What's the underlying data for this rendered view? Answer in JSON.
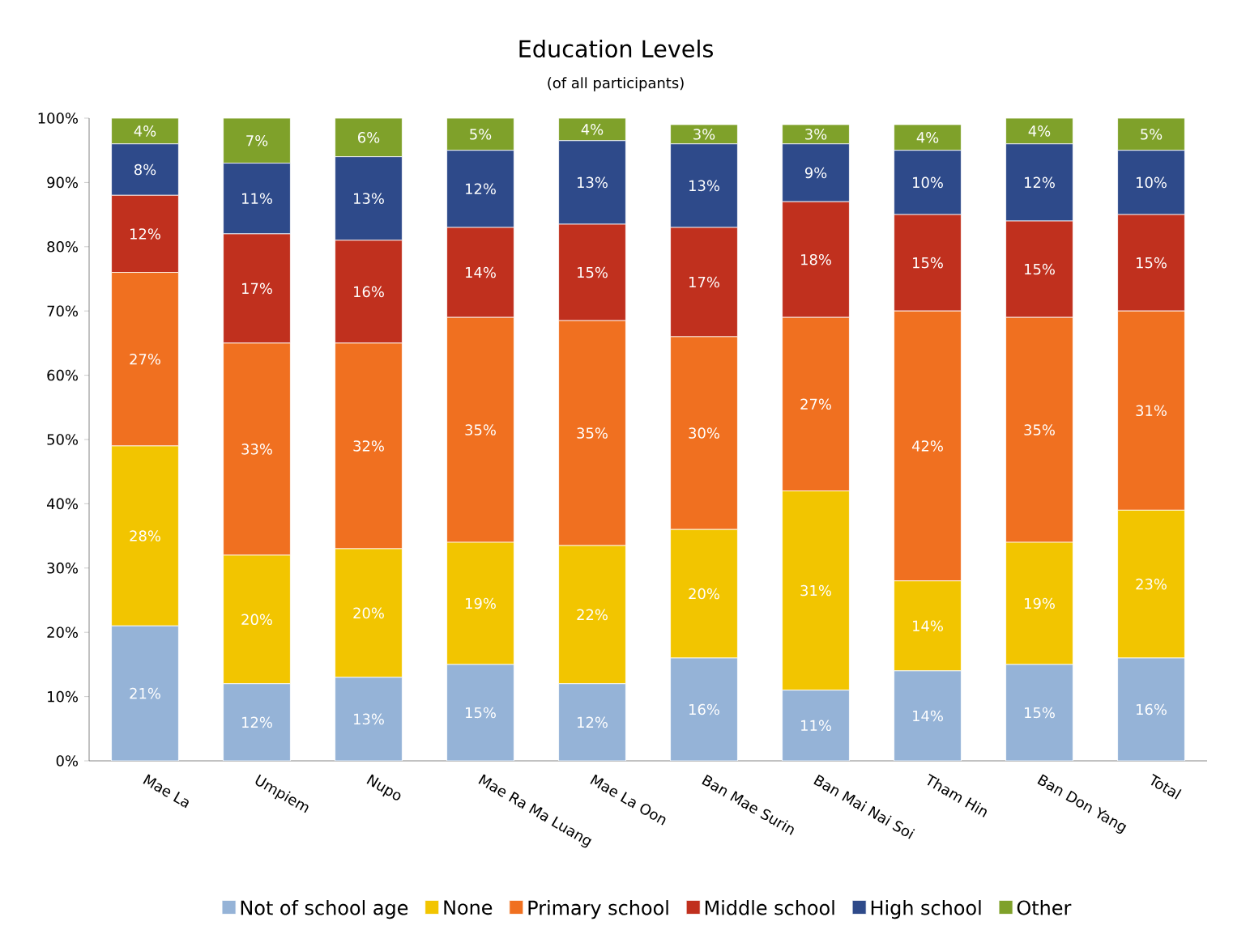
{
  "chart_data": {
    "type": "bar",
    "stacked": true,
    "title": "Education Levels",
    "subtitle": "(of all participants)",
    "categories": [
      "Mae La",
      "Umpiem",
      "Nupo",
      "Mae Ra Ma Luang",
      "Mae La Oon",
      "Ban Mae Surin",
      "Ban Mai Nai Soi",
      "Tham Hin",
      "Ban Don Yang",
      "Total"
    ],
    "ylim": [
      0,
      100
    ],
    "yticks": [
      {
        "value": 0,
        "label": "0%"
      },
      {
        "value": 10,
        "label": "10%"
      },
      {
        "value": 20,
        "label": "20%"
      },
      {
        "value": 30,
        "label": "30%"
      },
      {
        "value": 40,
        "label": "40%"
      },
      {
        "value": 50,
        "label": "50%"
      },
      {
        "value": 60,
        "label": "60%"
      },
      {
        "value": 70,
        "label": "70%"
      },
      {
        "value": 80,
        "label": "80%"
      },
      {
        "value": 90,
        "label": "90%"
      },
      {
        "value": 100,
        "label": "100%"
      }
    ],
    "grid": false,
    "legend": "bottom",
    "series": [
      {
        "name": "Not of school age",
        "color": "#95b3d7",
        "values": [
          21,
          12,
          13,
          15,
          12,
          16,
          11,
          14,
          15,
          16
        ],
        "value_labels": [
          "21%",
          "12%",
          "13%",
          "15%",
          "12%",
          "16%",
          "11%",
          "14%",
          "15%",
          "16%"
        ]
      },
      {
        "name": "None",
        "color": "#f2c500",
        "values": [
          28,
          20,
          20,
          19,
          21.5,
          20,
          31,
          14,
          19,
          23
        ],
        "value_labels": [
          "28%",
          "20%",
          "20%",
          "19%",
          "22%",
          "20%",
          "31%",
          "14%",
          "19%",
          "23%"
        ]
      },
      {
        "name": "Primary school",
        "color": "#f07020",
        "values": [
          27,
          33,
          32,
          35,
          35,
          30,
          27,
          42,
          35,
          31
        ],
        "value_labels": [
          "27%",
          "33%",
          "32%",
          "35%",
          "35%",
          "30%",
          "27%",
          "42%",
          "35%",
          "31%"
        ]
      },
      {
        "name": "Middle school",
        "color": "#c0301e",
        "values": [
          12,
          17,
          16,
          14,
          15,
          17,
          18,
          15,
          15,
          15
        ],
        "value_labels": [
          "12%",
          "17%",
          "16%",
          "14%",
          "15%",
          "17%",
          "18%",
          "15%",
          "15%",
          "15%"
        ]
      },
      {
        "name": "High school",
        "color": "#2e4a8a",
        "values": [
          8,
          11,
          13,
          12,
          13,
          13,
          9,
          10,
          12,
          10
        ],
        "value_labels": [
          "8%",
          "11%",
          "13%",
          "12%",
          "13%",
          "13%",
          "9%",
          "10%",
          "12%",
          "10%"
        ]
      },
      {
        "name": "Other",
        "color": "#7fa12a",
        "values": [
          4,
          7,
          6,
          5,
          3.5,
          3,
          3,
          4,
          4,
          5
        ],
        "value_labels": [
          "4%",
          "7%",
          "6%",
          "5%",
          "4%",
          "3%",
          "3%",
          "4%",
          "4%",
          "5%"
        ]
      }
    ]
  }
}
